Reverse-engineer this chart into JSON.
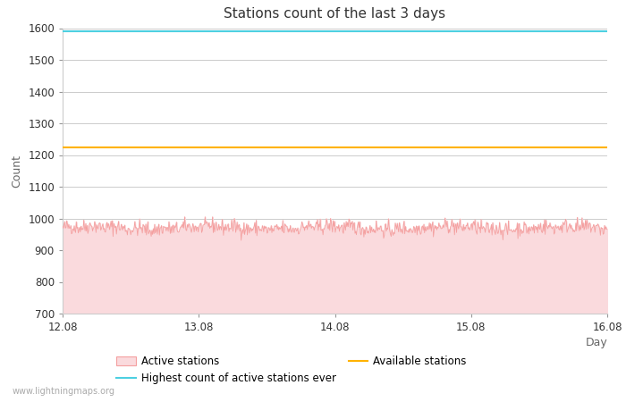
{
  "title": "Stations count of the last 3 days",
  "xlabel": "Day",
  "ylabel": "Count",
  "ylim": [
    700,
    1600
  ],
  "yticks": [
    700,
    800,
    900,
    1000,
    1100,
    1200,
    1300,
    1400,
    1500,
    1600
  ],
  "x_start": 0,
  "x_end": 96,
  "xtick_positions": [
    0,
    24,
    48,
    72,
    96
  ],
  "xtick_labels": [
    "12.08",
    "13.08",
    "14.08",
    "15.08",
    "16.08"
  ],
  "active_stations_mean": 970,
  "active_stations_noise": 12,
  "highest_ever": 1590,
  "available_stations": 1225,
  "active_color_line": "#f4a0a0",
  "active_color_fill": "#fadadd",
  "highest_color": "#4dd0e1",
  "available_color": "#ffb300",
  "background_color": "#ffffff",
  "grid_color": "#cccccc",
  "watermark": "www.lightningmaps.org",
  "legend_labels": [
    "Active stations",
    "Highest count of active stations ever",
    "Available stations"
  ],
  "title_fontsize": 11,
  "axis_label_fontsize": 9,
  "tick_fontsize": 8.5
}
